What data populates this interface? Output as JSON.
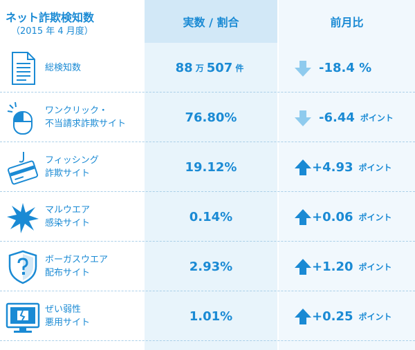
{
  "header": {
    "title": "ネット詐欺検知数",
    "subtitle": "（2015 年 4 月度）",
    "col_value": "実数 / 割合",
    "col_change": "前月比"
  },
  "colors": {
    "accent": "#1a8ad4",
    "up_arrow": "#1a8ad4",
    "down_arrow": "#8fcbee",
    "col2_bg": "#e8f4fb",
    "col3_bg": "#f1f8fd"
  },
  "rows": [
    {
      "icon": "document-icon",
      "label1": "総検知数",
      "label2": "",
      "value_num1": "88",
      "value_unit1": "万",
      "value_num2": "507",
      "value_unit2": "件",
      "direction": "down",
      "change": "-18.4 %",
      "change_unit": ""
    },
    {
      "icon": "mouse-click-icon",
      "label1": "ワンクリック・",
      "label2": "不当請求詐欺サイト",
      "value": "76.80%",
      "direction": "down",
      "change": "-6.44",
      "change_unit": "ポイント"
    },
    {
      "icon": "credit-card-hook-icon",
      "label1": "フィッシング",
      "label2": "詐欺サイト",
      "value": "19.12%",
      "direction": "up",
      "change": "+4.93",
      "change_unit": "ポイント"
    },
    {
      "icon": "malware-burst-icon",
      "label1": "マルウエア",
      "label2": "感染サイト",
      "value": "0.14%",
      "direction": "up",
      "change": "+0.06",
      "change_unit": "ポイント"
    },
    {
      "icon": "question-shield-icon",
      "label1": "ボーガスウエア",
      "label2": "配布サイト",
      "value": "2.93%",
      "direction": "up",
      "change": "+1.20",
      "change_unit": "ポイント"
    },
    {
      "icon": "broken-screen-icon",
      "label1": "ぜい弱性",
      "label2": "悪用サイト",
      "value": "1.01%",
      "direction": "up",
      "change": "+0.25",
      "change_unit": "ポイント"
    }
  ]
}
